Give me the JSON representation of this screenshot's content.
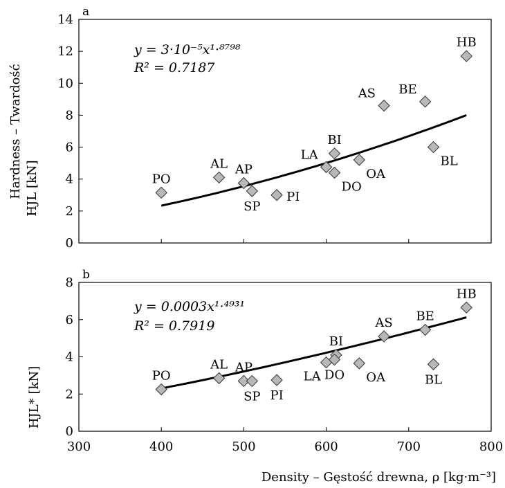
{
  "x_axis": {
    "label": "Density – Gęstość drewna, ρ [kg·m⁻³]",
    "ticks": [
      300,
      400,
      500,
      600,
      700,
      800
    ],
    "xlim": [
      300,
      800
    ]
  },
  "chart_data": [
    {
      "panel": "a",
      "type": "scatter",
      "ylabel_line1": "Hardness – Twardość",
      "ylabel_line2": "HJL [kN]",
      "ylim": [
        0,
        14
      ],
      "yticks": [
        0,
        2,
        4,
        6,
        8,
        10,
        12,
        14
      ],
      "equation": "y = 3·10⁻⁵x¹·⁸⁷⁹⁸",
      "r2": "R² = 0.7187",
      "points": [
        {
          "label": "PO",
          "x": 400,
          "y": 3.15,
          "label_pos": "above"
        },
        {
          "label": "AL",
          "x": 470,
          "y": 4.1,
          "label_pos": "above"
        },
        {
          "label": "AP",
          "x": 500,
          "y": 3.75,
          "label_pos": "above"
        },
        {
          "label": "SP",
          "x": 510,
          "y": 3.25,
          "label_pos": "below"
        },
        {
          "label": "PI",
          "x": 540,
          "y": 3.0,
          "label_pos": "right"
        },
        {
          "label": "LA",
          "x": 600,
          "y": 4.75,
          "label_pos": "above-left"
        },
        {
          "label": "BI",
          "x": 610,
          "y": 5.6,
          "label_pos": "above"
        },
        {
          "label": "DO",
          "x": 610,
          "y": 4.4,
          "label_pos": "below-right"
        },
        {
          "label": "OA",
          "x": 640,
          "y": 5.2,
          "label_pos": "below-right"
        },
        {
          "label": "AS",
          "x": 670,
          "y": 8.6,
          "label_pos": "above-left"
        },
        {
          "label": "BE",
          "x": 720,
          "y": 8.85,
          "label_pos": "above-left"
        },
        {
          "label": "BL",
          "x": 730,
          "y": 6.0,
          "label_pos": "below-right"
        },
        {
          "label": "HB",
          "x": 770,
          "y": 11.7,
          "label_pos": "above"
        }
      ],
      "trend": {
        "a": 3e-05,
        "b": 1.8798,
        "x_from": 400,
        "x_to": 770
      }
    },
    {
      "panel": "b",
      "type": "scatter",
      "ylabel": "HJL* [kN]",
      "ylim": [
        0,
        8
      ],
      "yticks": [
        0,
        2,
        4,
        6,
        8
      ],
      "equation": "y = 0.0003x¹·⁴⁹³¹",
      "r2": "R² = 0.7919",
      "points": [
        {
          "label": "PO",
          "x": 400,
          "y": 2.25,
          "label_pos": "above"
        },
        {
          "label": "AL",
          "x": 470,
          "y": 2.85,
          "label_pos": "above"
        },
        {
          "label": "AP",
          "x": 500,
          "y": 2.7,
          "label_pos": "above"
        },
        {
          "label": "SP",
          "x": 510,
          "y": 2.7,
          "label_pos": "below"
        },
        {
          "label": "PI",
          "x": 540,
          "y": 2.75,
          "label_pos": "below"
        },
        {
          "label": "LA",
          "x": 600,
          "y": 3.7,
          "label_pos": "below-left"
        },
        {
          "label": "BI",
          "x": 612,
          "y": 4.1,
          "label_pos": "above"
        },
        {
          "label": "DO",
          "x": 610,
          "y": 3.85,
          "label_pos": "below"
        },
        {
          "label": "OA",
          "x": 640,
          "y": 3.65,
          "label_pos": "below-right"
        },
        {
          "label": "AS",
          "x": 670,
          "y": 5.1,
          "label_pos": "above"
        },
        {
          "label": "BE",
          "x": 720,
          "y": 5.45,
          "label_pos": "above"
        },
        {
          "label": "BL",
          "x": 730,
          "y": 3.6,
          "label_pos": "below"
        },
        {
          "label": "HB",
          "x": 770,
          "y": 6.65,
          "label_pos": "above"
        }
      ],
      "trend": {
        "a": 0.0003,
        "b": 1.4931,
        "x_from": 400,
        "x_to": 770
      }
    }
  ],
  "colors": {
    "marker_fill": "#b8b8b8",
    "marker_stroke": "#333333",
    "line": "#000000"
  }
}
